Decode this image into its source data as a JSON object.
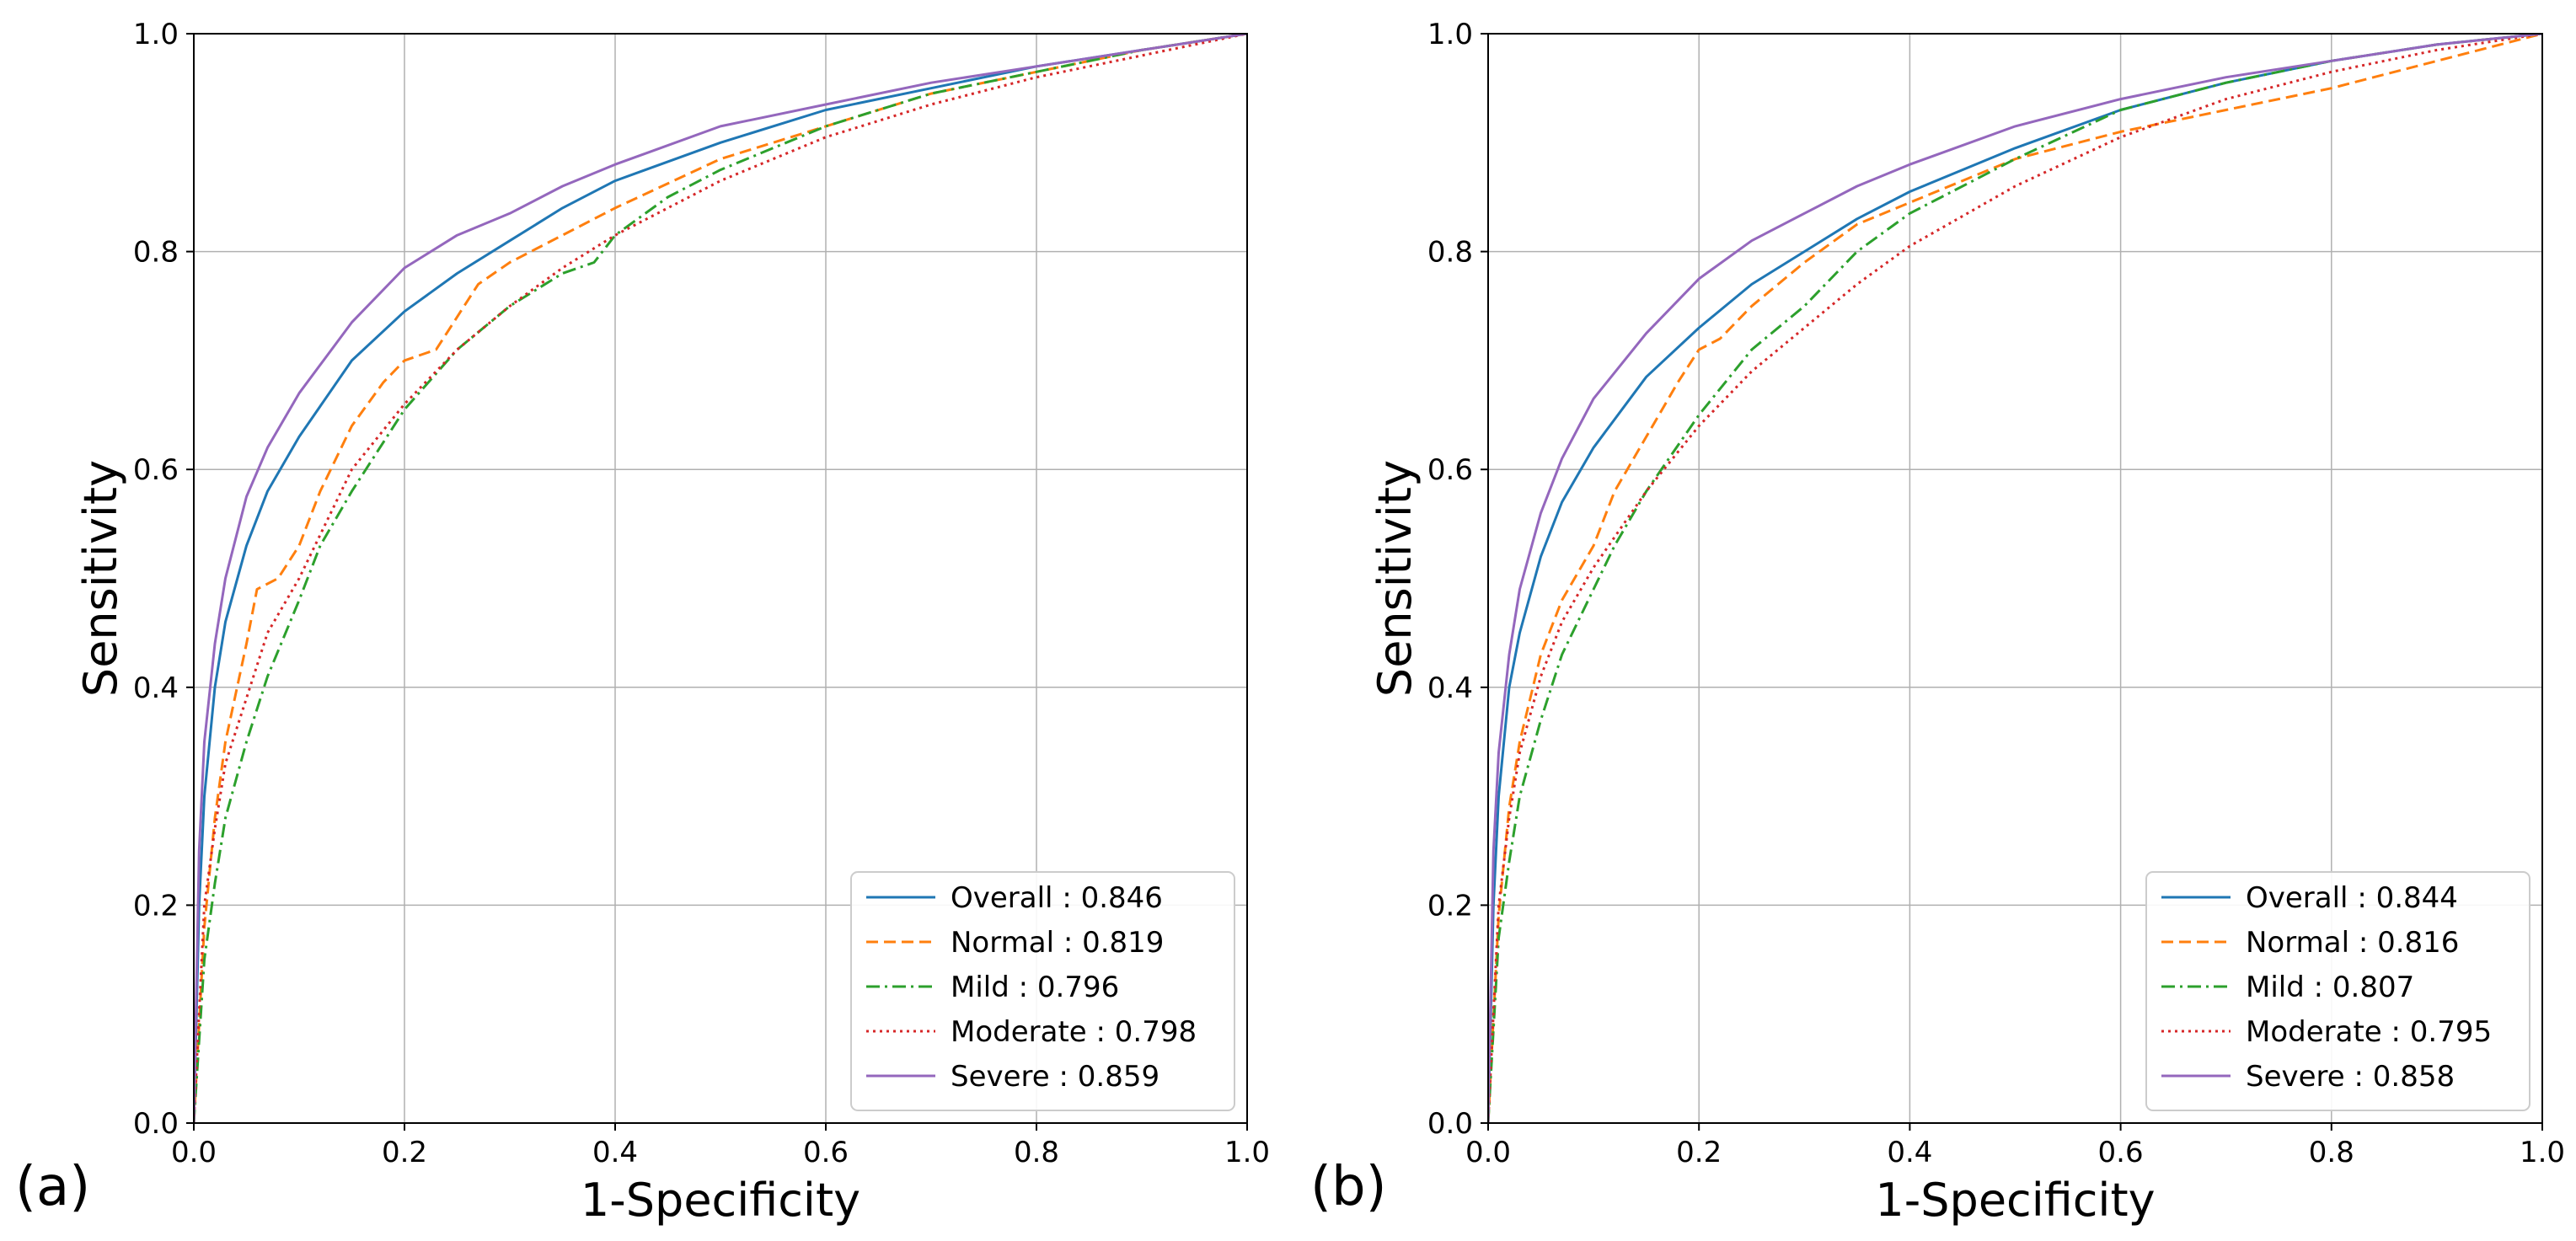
{
  "chart_data": [
    {
      "type": "line",
      "panel_label": "(a)",
      "xlabel": "1-Specificity",
      "ylabel": "Sensitivity",
      "xlim": [
        0,
        1
      ],
      "ylim": [
        0,
        1
      ],
      "xticks": [
        "0.0",
        "0.2",
        "0.4",
        "0.6",
        "0.8",
        "1.0"
      ],
      "yticks": [
        "0.0",
        "0.2",
        "0.4",
        "0.6",
        "0.8",
        "1.0"
      ],
      "grid": true,
      "legend_position": "bottom-right",
      "series": [
        {
          "name": "Overall",
          "label": "Overall : 0.846",
          "auc": 0.846,
          "color": "#1f77b4",
          "dash": "solid",
          "x": [
            0,
            0.005,
            0.01,
            0.02,
            0.03,
            0.05,
            0.07,
            0.1,
            0.15,
            0.2,
            0.25,
            0.3,
            0.35,
            0.4,
            0.5,
            0.6,
            0.7,
            0.8,
            0.9,
            1.0
          ],
          "y": [
            0,
            0.2,
            0.3,
            0.4,
            0.46,
            0.53,
            0.58,
            0.63,
            0.7,
            0.745,
            0.78,
            0.81,
            0.84,
            0.865,
            0.9,
            0.93,
            0.95,
            0.97,
            0.985,
            1.0
          ]
        },
        {
          "name": "Normal",
          "label": "Normal : 0.819",
          "auc": 0.819,
          "color": "#ff7f0e",
          "dash": "dashed",
          "x": [
            0,
            0.01,
            0.02,
            0.03,
            0.05,
            0.06,
            0.08,
            0.1,
            0.12,
            0.15,
            0.18,
            0.2,
            0.23,
            0.27,
            0.3,
            0.35,
            0.4,
            0.5,
            0.6,
            0.7,
            0.8,
            0.9,
            1.0
          ],
          "y": [
            0,
            0.18,
            0.28,
            0.35,
            0.44,
            0.49,
            0.5,
            0.53,
            0.58,
            0.64,
            0.68,
            0.7,
            0.71,
            0.77,
            0.79,
            0.815,
            0.84,
            0.885,
            0.915,
            0.945,
            0.965,
            0.985,
            1.0
          ]
        },
        {
          "name": "Mild",
          "label": "Mild : 0.796",
          "auc": 0.796,
          "color": "#2ca02c",
          "dash": "dashdot",
          "x": [
            0,
            0.01,
            0.02,
            0.03,
            0.05,
            0.07,
            0.1,
            0.12,
            0.15,
            0.2,
            0.25,
            0.3,
            0.35,
            0.38,
            0.4,
            0.45,
            0.5,
            0.6,
            0.7,
            0.8,
            0.9,
            1.0
          ],
          "y": [
            0,
            0.15,
            0.22,
            0.28,
            0.35,
            0.41,
            0.48,
            0.53,
            0.58,
            0.655,
            0.71,
            0.75,
            0.78,
            0.79,
            0.815,
            0.85,
            0.875,
            0.915,
            0.945,
            0.965,
            0.985,
            1.0
          ]
        },
        {
          "name": "Moderate",
          "label": "Moderate : 0.798",
          "auc": 0.798,
          "color": "#d62728",
          "dash": "dotted",
          "x": [
            0,
            0.01,
            0.02,
            0.03,
            0.05,
            0.07,
            0.1,
            0.15,
            0.2,
            0.25,
            0.3,
            0.35,
            0.4,
            0.5,
            0.6,
            0.7,
            0.8,
            0.9,
            1.0
          ],
          "y": [
            0,
            0.2,
            0.27,
            0.33,
            0.39,
            0.45,
            0.5,
            0.6,
            0.66,
            0.71,
            0.75,
            0.785,
            0.815,
            0.865,
            0.905,
            0.935,
            0.96,
            0.98,
            1.0
          ]
        },
        {
          "name": "Severe",
          "label": "Severe : 0.859",
          "auc": 0.859,
          "color": "#9467bd",
          "dash": "solid",
          "x": [
            0,
            0.005,
            0.01,
            0.02,
            0.03,
            0.05,
            0.07,
            0.1,
            0.15,
            0.2,
            0.25,
            0.3,
            0.35,
            0.4,
            0.5,
            0.6,
            0.7,
            0.8,
            0.9,
            1.0
          ],
          "y": [
            0,
            0.25,
            0.35,
            0.44,
            0.5,
            0.575,
            0.62,
            0.67,
            0.735,
            0.785,
            0.815,
            0.835,
            0.86,
            0.88,
            0.915,
            0.935,
            0.955,
            0.97,
            0.985,
            1.0
          ]
        }
      ]
    },
    {
      "type": "line",
      "panel_label": "(b)",
      "xlabel": "1-Specificity",
      "ylabel": "Sensitivity",
      "xlim": [
        0,
        1
      ],
      "ylim": [
        0,
        1
      ],
      "xticks": [
        "0.0",
        "0.2",
        "0.4",
        "0.6",
        "0.8",
        "1.0"
      ],
      "yticks": [
        "0.0",
        "0.2",
        "0.4",
        "0.6",
        "0.8",
        "1.0"
      ],
      "grid": true,
      "legend_position": "bottom-right",
      "series": [
        {
          "name": "Overall",
          "label": "Overall : 0.844",
          "auc": 0.844,
          "color": "#1f77b4",
          "dash": "solid",
          "x": [
            0,
            0.005,
            0.01,
            0.02,
            0.03,
            0.05,
            0.07,
            0.1,
            0.15,
            0.2,
            0.25,
            0.3,
            0.35,
            0.4,
            0.5,
            0.6,
            0.7,
            0.8,
            0.9,
            1.0
          ],
          "y": [
            0,
            0.2,
            0.3,
            0.4,
            0.45,
            0.52,
            0.57,
            0.62,
            0.685,
            0.73,
            0.77,
            0.8,
            0.83,
            0.855,
            0.895,
            0.93,
            0.955,
            0.975,
            0.99,
            1.0
          ]
        },
        {
          "name": "Normal",
          "label": "Normal : 0.816",
          "auc": 0.816,
          "color": "#ff7f0e",
          "dash": "dashed",
          "x": [
            0,
            0.01,
            0.02,
            0.03,
            0.05,
            0.07,
            0.1,
            0.12,
            0.15,
            0.18,
            0.2,
            0.22,
            0.25,
            0.3,
            0.35,
            0.4,
            0.45,
            0.5,
            0.6,
            0.7,
            0.8,
            0.9,
            1.0
          ],
          "y": [
            0,
            0.19,
            0.29,
            0.35,
            0.43,
            0.48,
            0.53,
            0.58,
            0.63,
            0.68,
            0.71,
            0.72,
            0.75,
            0.79,
            0.825,
            0.845,
            0.865,
            0.885,
            0.91,
            0.93,
            0.95,
            0.975,
            1.0
          ]
        },
        {
          "name": "Mild",
          "label": "Mild : 0.807",
          "auc": 0.807,
          "color": "#2ca02c",
          "dash": "dashdot",
          "x": [
            0,
            0.01,
            0.02,
            0.03,
            0.05,
            0.07,
            0.1,
            0.12,
            0.15,
            0.2,
            0.25,
            0.3,
            0.35,
            0.4,
            0.5,
            0.6,
            0.7,
            0.8,
            0.9,
            1.0
          ],
          "y": [
            0,
            0.17,
            0.24,
            0.3,
            0.37,
            0.43,
            0.49,
            0.53,
            0.58,
            0.65,
            0.71,
            0.75,
            0.8,
            0.835,
            0.885,
            0.93,
            0.955,
            0.975,
            0.99,
            1.0
          ]
        },
        {
          "name": "Moderate",
          "label": "Moderate : 0.795",
          "auc": 0.795,
          "color": "#d62728",
          "dash": "dotted",
          "x": [
            0,
            0.01,
            0.02,
            0.03,
            0.05,
            0.07,
            0.1,
            0.15,
            0.2,
            0.25,
            0.3,
            0.35,
            0.4,
            0.5,
            0.6,
            0.7,
            0.8,
            0.9,
            1.0
          ],
          "y": [
            0,
            0.2,
            0.28,
            0.34,
            0.41,
            0.46,
            0.51,
            0.58,
            0.64,
            0.69,
            0.73,
            0.77,
            0.805,
            0.86,
            0.905,
            0.94,
            0.965,
            0.985,
            1.0
          ]
        },
        {
          "name": "Severe",
          "label": "Severe : 0.858",
          "auc": 0.858,
          "color": "#9467bd",
          "dash": "solid",
          "x": [
            0,
            0.005,
            0.01,
            0.02,
            0.03,
            0.05,
            0.07,
            0.1,
            0.15,
            0.2,
            0.25,
            0.3,
            0.35,
            0.4,
            0.5,
            0.6,
            0.7,
            0.8,
            0.9,
            1.0
          ],
          "y": [
            0,
            0.25,
            0.34,
            0.43,
            0.49,
            0.56,
            0.61,
            0.665,
            0.725,
            0.775,
            0.81,
            0.835,
            0.86,
            0.88,
            0.915,
            0.94,
            0.96,
            0.975,
            0.99,
            1.0
          ]
        }
      ]
    }
  ]
}
